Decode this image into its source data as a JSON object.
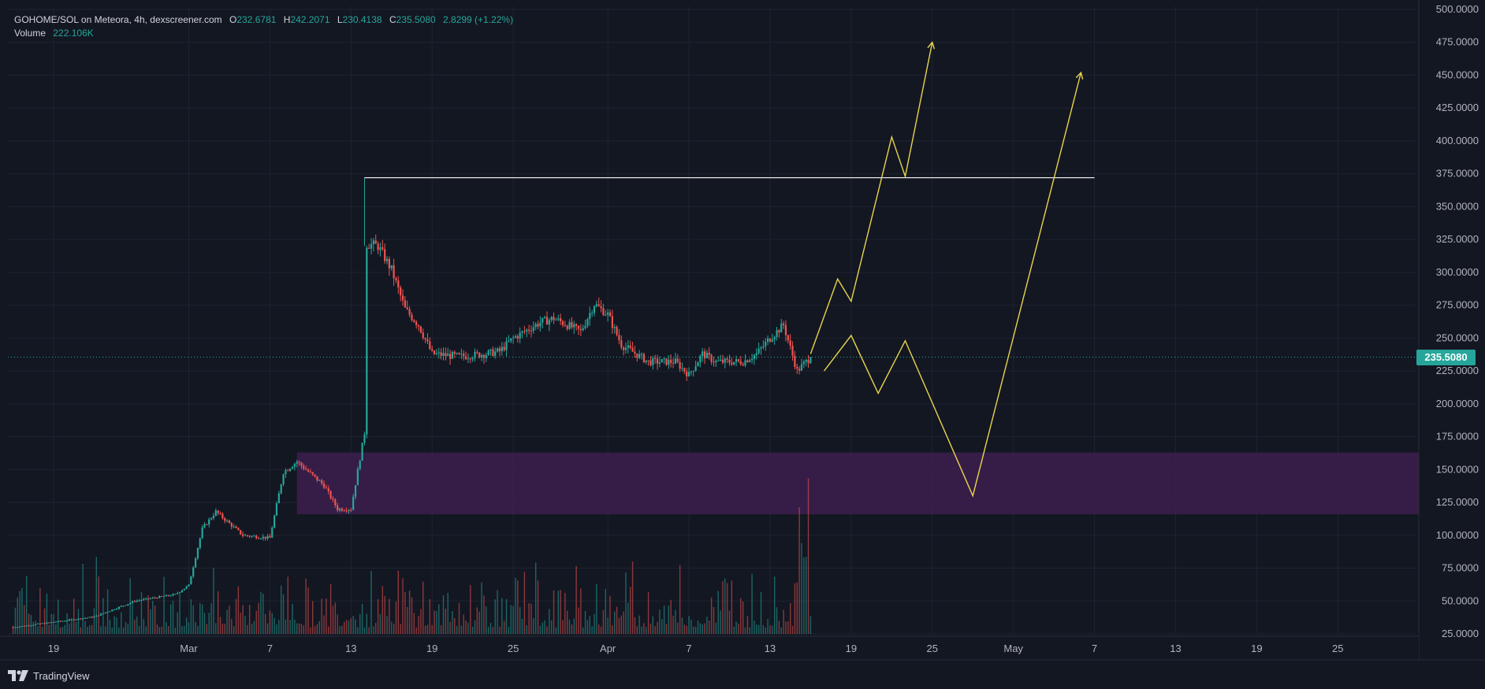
{
  "legend": {
    "pair": "GOHOME/SOL on Meteora, 4h, dexscreener.com",
    "open_label": "O",
    "open": "232.6781",
    "high_label": "H",
    "high": "242.2071",
    "low_label": "L",
    "low": "230.4138",
    "close_label": "C",
    "close": "235.5080",
    "change": "2.8299 (+1.22%)",
    "volume_label": "Volume",
    "volume": "222.106K"
  },
  "price_tag": "235.5080",
  "brand": "TradingView",
  "colors": {
    "background": "#131722",
    "up": "#26a69a",
    "down": "#ef5350",
    "zone": "#3d1f4f",
    "projection": "#e8d44d",
    "resistance": "#ffffff",
    "grid": "#1f2330"
  },
  "chart_data": {
    "type": "candlestick",
    "y_axis": {
      "min": 25,
      "max": 500,
      "ticks": [
        "500.0000",
        "475.0000",
        "450.0000",
        "425.0000",
        "400.0000",
        "375.0000",
        "350.0000",
        "325.0000",
        "300.0000",
        "275.0000",
        "250.0000",
        "225.0000",
        "200.0000",
        "175.0000",
        "150.0000",
        "125.0000",
        "100.0000",
        "75.0000",
        "50.0000",
        "25.0000"
      ]
    },
    "x_axis": {
      "ticks": [
        "19",
        "Mar",
        "7",
        "13",
        "19",
        "25",
        "Apr",
        "7",
        "13",
        "19",
        "25",
        "May",
        "7",
        "13",
        "19",
        "25"
      ]
    },
    "price_path": [
      [
        "2025-02-16",
        30
      ],
      [
        "2025-02-22",
        38
      ],
      [
        "2025-02-25",
        50
      ],
      [
        "2025-02-28",
        55
      ],
      [
        "2025-03-01",
        62
      ],
      [
        "2025-03-02",
        105
      ],
      [
        "2025-03-03",
        118
      ],
      [
        "2025-03-05",
        100
      ],
      [
        "2025-03-07",
        98
      ],
      [
        "2025-03-08",
        148
      ],
      [
        "2025-03-09",
        156
      ],
      [
        "2025-03-11",
        138
      ],
      [
        "2025-03-12",
        120
      ],
      [
        "2025-03-13",
        120
      ],
      [
        "2025-03-14",
        178
      ],
      [
        "2025-03-14",
        322
      ],
      [
        "2025-03-15",
        320
      ],
      [
        "2025-03-16",
        302
      ],
      [
        "2025-03-17",
        272
      ],
      [
        "2025-03-18",
        260
      ],
      [
        "2025-03-19",
        238
      ],
      [
        "2025-03-21",
        236
      ],
      [
        "2025-03-23",
        238
      ],
      [
        "2025-03-24",
        240
      ],
      [
        "2025-03-25",
        250
      ],
      [
        "2025-03-27",
        262
      ],
      [
        "2025-03-28",
        265
      ],
      [
        "2025-03-30",
        255
      ],
      [
        "2025-03-31",
        276
      ],
      [
        "2025-04-01",
        268
      ],
      [
        "2025-04-02",
        245
      ],
      [
        "2025-04-04",
        232
      ],
      [
        "2025-04-06",
        232
      ],
      [
        "2025-04-07",
        222
      ],
      [
        "2025-04-08",
        238
      ],
      [
        "2025-04-09",
        232
      ],
      [
        "2025-04-11",
        232
      ],
      [
        "2025-04-12",
        238
      ],
      [
        "2025-04-13",
        250
      ],
      [
        "2025-04-14",
        260
      ],
      [
        "2025-04-15",
        225
      ],
      [
        "2025-04-16",
        235.508
      ]
    ],
    "volume_profile": "heavy spike on 2025-04-15",
    "current_price": 235.508,
    "resistance_line": {
      "value": 372,
      "from": "2025-03-14",
      "to": "2025-05-07"
    },
    "support_zone": {
      "low": 116,
      "high": 163,
      "from": "2025-03-09",
      "to": "2025-05-31"
    },
    "projections": [
      {
        "name": "bullish",
        "points": [
          [
            "2025-04-16",
            238
          ],
          [
            "2025-04-18",
            295
          ],
          [
            "2025-04-19",
            278
          ],
          [
            "2025-04-22",
            403
          ],
          [
            "2025-04-23",
            373
          ],
          [
            "2025-04-25",
            475
          ]
        ]
      },
      {
        "name": "bearish-then-bullish",
        "points": [
          [
            "2025-04-17",
            225
          ],
          [
            "2025-04-19",
            252
          ],
          [
            "2025-04-21",
            208
          ],
          [
            "2025-04-23",
            248
          ],
          [
            "2025-04-28",
            130
          ],
          [
            "2025-05-06",
            452
          ]
        ]
      }
    ]
  }
}
